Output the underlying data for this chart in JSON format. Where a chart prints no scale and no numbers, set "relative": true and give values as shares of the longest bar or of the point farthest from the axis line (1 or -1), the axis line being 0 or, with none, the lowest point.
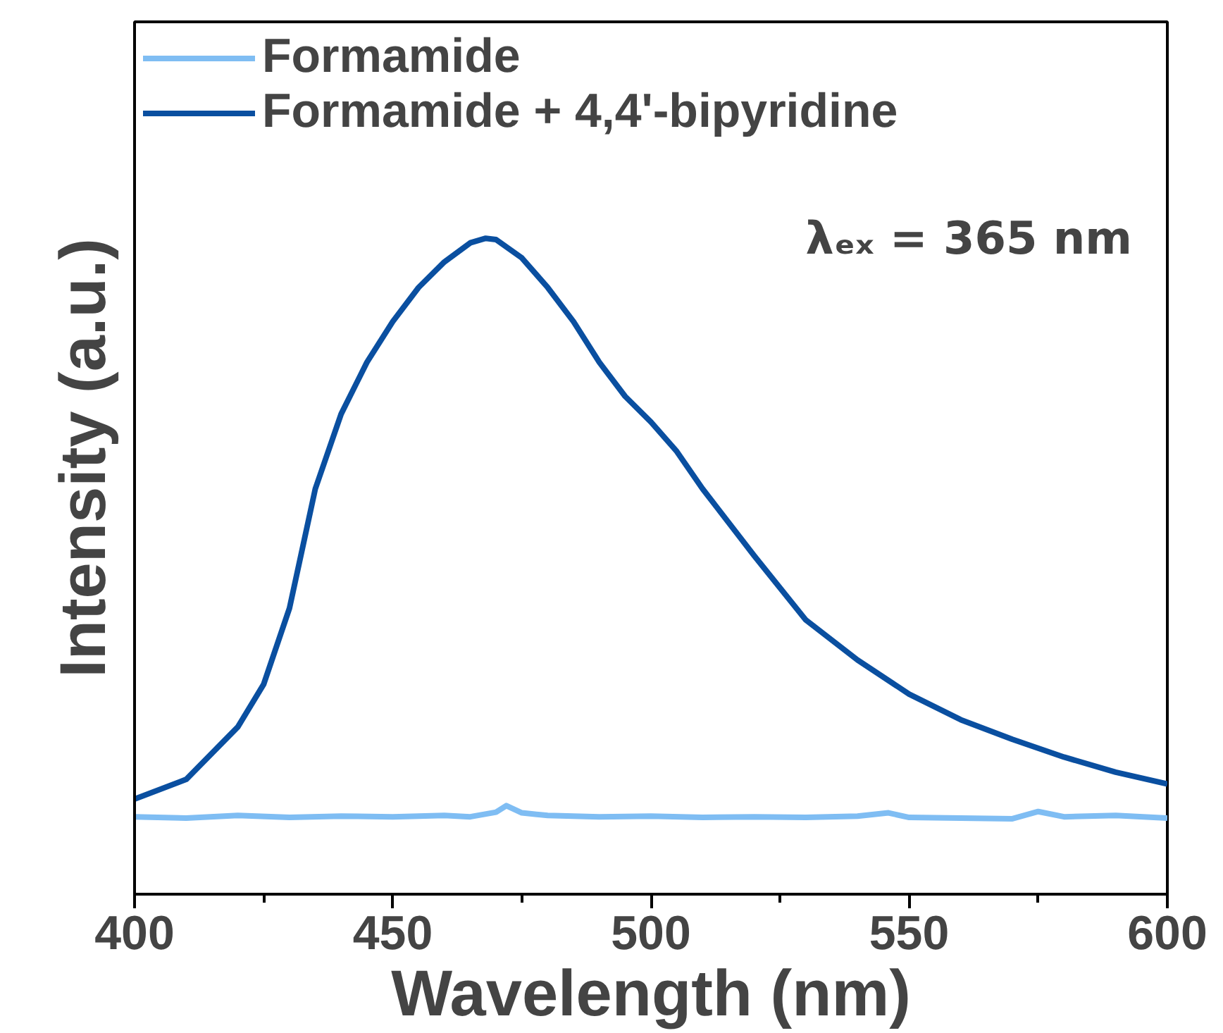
{
  "chart_data": {
    "type": "line",
    "relative": true,
    "xlabel": "Wavelength (nm)",
    "ylabel": "Intensity (a.u.)",
    "xlim": [
      400,
      600
    ],
    "xticks": [
      400,
      {
        "value": 425,
        "label": null
      },
      450,
      {
        "value": 475,
        "label": null
      },
      500,
      {
        "value": 525,
        "label": null
      },
      550,
      {
        "value": 575,
        "label": null
      },
      600
    ],
    "grid": false,
    "legend": "top left",
    "line_style": "solid",
    "marker": "none",
    "annotations": [
      {
        "text": "λₑₓ = 365 nm"
      }
    ],
    "series": [
      {
        "name": "Formamide",
        "color": "#7fbdf3",
        "x": [
          400,
          410,
          420,
          430,
          440,
          450,
          460,
          465,
          470,
          472,
          475,
          480,
          490,
          500,
          510,
          520,
          530,
          540,
          546,
          550,
          560,
          570,
          575,
          580,
          590,
          600
        ],
        "values": [
          0.118,
          0.116,
          0.12,
          0.117,
          0.119,
          0.118,
          0.12,
          0.118,
          0.125,
          0.135,
          0.124,
          0.12,
          0.118,
          0.119,
          0.117,
          0.118,
          0.117,
          0.119,
          0.124,
          0.117,
          0.116,
          0.115,
          0.126,
          0.118,
          0.12,
          0.116
        ]
      },
      {
        "name": "Formamide + 4,4'-bipyridine",
        "color": "#0a4fa0",
        "x": [
          400,
          410,
          420,
          425,
          430,
          435,
          440,
          445,
          450,
          455,
          460,
          465,
          468,
          470,
          475,
          480,
          485,
          490,
          495,
          500,
          505,
          510,
          520,
          530,
          540,
          550,
          560,
          570,
          580,
          590,
          600
        ],
        "values": [
          0.145,
          0.175,
          0.255,
          0.32,
          0.436,
          0.618,
          0.732,
          0.811,
          0.873,
          0.925,
          0.964,
          0.993,
          1.0,
          0.998,
          0.97,
          0.925,
          0.873,
          0.811,
          0.759,
          0.72,
          0.675,
          0.618,
          0.516,
          0.418,
          0.357,
          0.305,
          0.266,
          0.236,
          0.209,
          0.186,
          0.168
        ]
      }
    ]
  }
}
